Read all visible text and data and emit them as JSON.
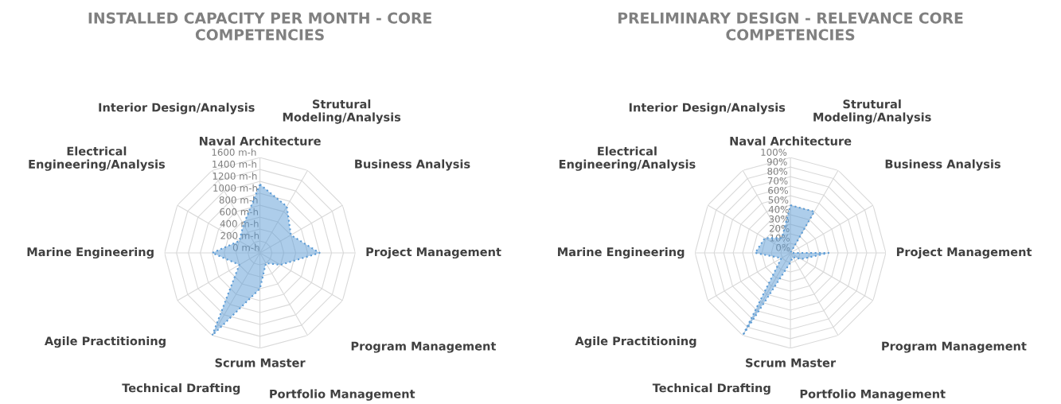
{
  "chart_data": [
    {
      "type": "radar",
      "title": "INSTALLED CAPACITY PER MONTH - CORE COMPETENCIES",
      "categories": [
        "Naval Architecture",
        "Strutural\nModeling/Analysis",
        "Business Analysis",
        "Project Management",
        "Program Management",
        "Portfolio Management",
        "Scrum Master",
        "Technical Drafting",
        "Agile Practitioning",
        "Marine Engineering",
        "Electrical\nEngineering/Analysis",
        "Interior Design/Analysis"
      ],
      "series": [
        {
          "color": "#5b9bd5",
          "values": [
            1150,
            900,
            600,
            1000,
            400,
            200,
            600,
            1600,
            400,
            800,
            400,
            550
          ]
        }
      ],
      "ylim": [
        0,
        1600
      ],
      "yticks": [
        {
          "value": 0,
          "label": "0 m-h"
        },
        {
          "value": 200,
          "label": "200 m-h"
        },
        {
          "value": 400,
          "label": "400 m-h"
        },
        {
          "value": 600,
          "label": "600 m-h"
        },
        {
          "value": 800,
          "label": "800 m-h"
        },
        {
          "value": 1000,
          "label": "1000 m-h"
        },
        {
          "value": 1200,
          "label": "1200 m-h"
        },
        {
          "value": 1400,
          "label": "1400 m-h"
        },
        {
          "value": 1600,
          "label": "1600 m-h"
        }
      ],
      "grid": true,
      "line_style": "dotted"
    },
    {
      "type": "radar",
      "title": "PRELIMINARY DESIGN - RELEVANCE CORE COMPETENCIES",
      "categories": [
        "Naval Architecture",
        "Strutural\nModeling/Analysis",
        "Business Analysis",
        "Project Management",
        "Program Management",
        "Portfolio Management",
        "Scrum Master",
        "Technical Drafting",
        "Agile Practitioning",
        "Marine Engineering",
        "Electrical\nEngineering/Analysis",
        "Interior Design/Analysis"
      ],
      "series": [
        {
          "color": "#5b9bd5",
          "values": [
            50,
            50,
            0,
            40,
            13,
            5,
            10,
            100,
            11,
            37,
            31,
            18
          ]
        }
      ],
      "ylim": [
        0,
        100
      ],
      "yticks": [
        {
          "value": 0,
          "label": "0%"
        },
        {
          "value": 10,
          "label": "10%"
        },
        {
          "value": 20,
          "label": "20%"
        },
        {
          "value": 30,
          "label": "30%"
        },
        {
          "value": 40,
          "label": "40%"
        },
        {
          "value": 50,
          "label": "50%"
        },
        {
          "value": 60,
          "label": "60%"
        },
        {
          "value": 70,
          "label": "70%"
        },
        {
          "value": 80,
          "label": "80%"
        },
        {
          "value": 90,
          "label": "90%"
        },
        {
          "value": 100,
          "label": "100%"
        }
      ],
      "grid": true,
      "line_style": "dotted"
    }
  ]
}
